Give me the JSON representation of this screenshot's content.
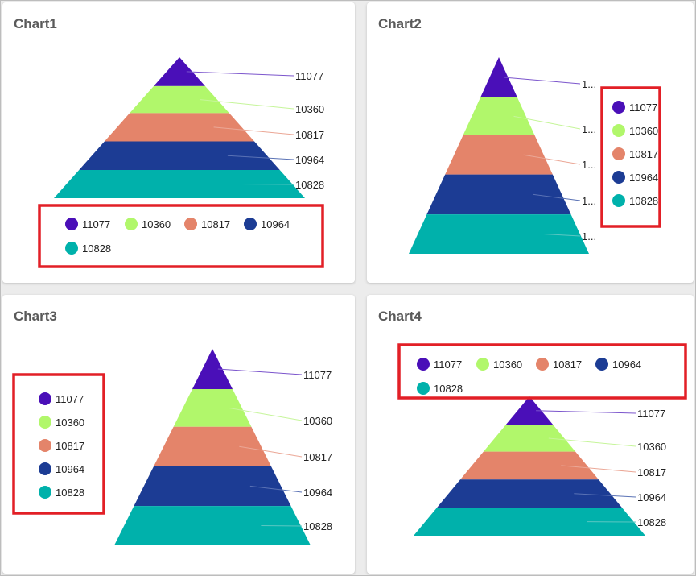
{
  "colors": {
    "slice_colors": [
      "#4a0fb8",
      "#b1f76b",
      "#e4846a",
      "#1c3c94",
      "#00b1ab"
    ],
    "highlight_box": "#e21f26",
    "connector_colors": [
      "#7b55cc",
      "#c6f59a",
      "#eba796",
      "#5a72b5",
      "#5ac7c2"
    ]
  },
  "chart_data": [
    {
      "type": "pyramid",
      "title": "Chart1",
      "values": [
        11077,
        10360,
        10817,
        10964,
        10828
      ],
      "labels": [
        "11077",
        "10360",
        "10817",
        "10964",
        "10828"
      ],
      "legend": {
        "position": "bottom",
        "highlighted": true
      }
    },
    {
      "type": "pyramid",
      "title": "Chart2",
      "values": [
        11077,
        10360,
        10817,
        10964,
        10828
      ],
      "labels": [
        "1...",
        "1...",
        "1...",
        "1...",
        "1..."
      ],
      "legend_labels": [
        "11077",
        "10360",
        "10817",
        "10964",
        "10828"
      ],
      "legend": {
        "position": "right",
        "highlighted": true
      }
    },
    {
      "type": "pyramid",
      "title": "Chart3",
      "values": [
        11077,
        10360,
        10817,
        10964,
        10828
      ],
      "labels": [
        "11077",
        "10360",
        "10817",
        "10964",
        "10828"
      ],
      "legend": {
        "position": "left",
        "highlighted": true
      }
    },
    {
      "type": "pyramid",
      "title": "Chart4",
      "values": [
        11077,
        10360,
        10817,
        10964,
        10828
      ],
      "labels": [
        "11077",
        "10360",
        "10817",
        "10964",
        "10828"
      ],
      "legend": {
        "position": "top",
        "highlighted": true
      }
    }
  ]
}
